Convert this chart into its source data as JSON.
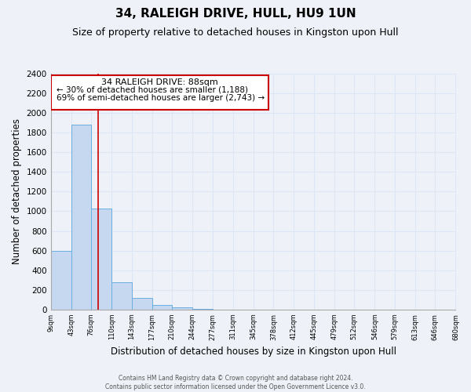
{
  "title": "34, RALEIGH DRIVE, HULL, HU9 1UN",
  "subtitle": "Size of property relative to detached houses in Kingston upon Hull",
  "xlabel": "Distribution of detached houses by size in Kingston upon Hull",
  "ylabel": "Number of detached properties",
  "bar_edges": [
    9,
    43,
    76,
    110,
    143,
    177,
    210,
    244,
    277,
    311,
    345,
    378,
    412,
    445,
    479,
    512,
    546,
    579,
    613,
    646,
    680
  ],
  "bar_heights": [
    600,
    1880,
    1030,
    280,
    115,
    45,
    20,
    5,
    0,
    0,
    0,
    0,
    0,
    0,
    0,
    0,
    0,
    0,
    0,
    0
  ],
  "bar_color": "#c5d8f0",
  "bar_edgecolor": "#6aaee0",
  "property_line_x": 88,
  "property_line_color": "#cc0000",
  "ylim": [
    0,
    2400
  ],
  "yticks": [
    0,
    200,
    400,
    600,
    800,
    1000,
    1200,
    1400,
    1600,
    1800,
    2000,
    2200,
    2400
  ],
  "annotation_title": "34 RALEIGH DRIVE: 88sqm",
  "annotation_line1": "← 30% of detached houses are smaller (1,188)",
  "annotation_line2": "69% of semi-detached houses are larger (2,743) →",
  "footer_line1": "Contains HM Land Registry data © Crown copyright and database right 2024.",
  "footer_line2": "Contains public sector information licensed under the Open Government Licence v3.0.",
  "background_color": "#eef2f8",
  "grid_color": "#dde6f4",
  "title_fontsize": 11,
  "subtitle_fontsize": 9,
  "tick_labels": [
    "9sqm",
    "43sqm",
    "76sqm",
    "110sqm",
    "143sqm",
    "177sqm",
    "210sqm",
    "244sqm",
    "277sqm",
    "311sqm",
    "345sqm",
    "378sqm",
    "412sqm",
    "445sqm",
    "479sqm",
    "512sqm",
    "546sqm",
    "579sqm",
    "613sqm",
    "646sqm",
    "680sqm"
  ]
}
